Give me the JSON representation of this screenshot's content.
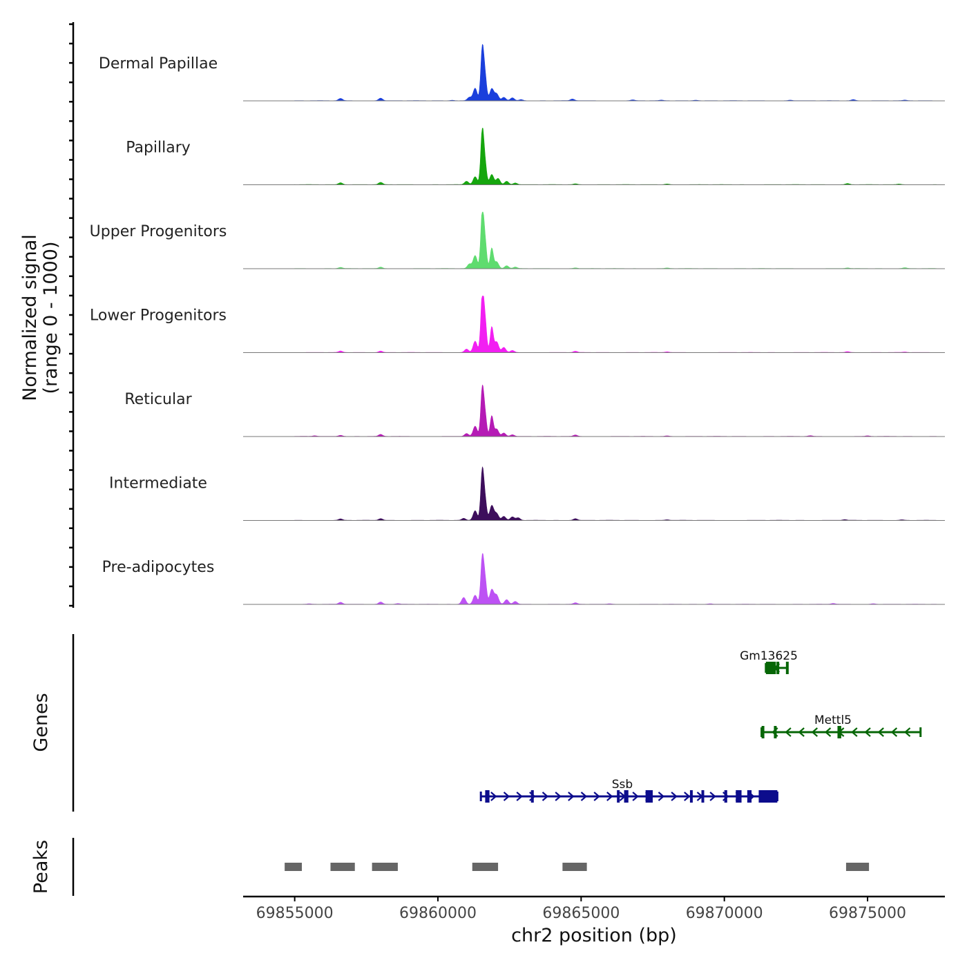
{
  "chart_data": {
    "type": "area",
    "chromosome": "chr2",
    "xlabel": "chr2 position (bp)",
    "xlim": [
      69853200,
      69877700
    ],
    "xticks": [
      69855000,
      69860000,
      69865000,
      69870000,
      69875000
    ],
    "xtick_labels": [
      "69855000",
      "69860000",
      "69865000",
      "69870000",
      "69875000"
    ],
    "coverage_panel": {
      "ylabel_line1": "Normalized signal",
      "ylabel_line2": "(range 0 - 1000)",
      "ylim": [
        0,
        1000
      ]
    },
    "genes_panel": {
      "ylabel": "Genes"
    },
    "peaks_panel": {
      "ylabel": "Peaks"
    },
    "tracks": [
      {
        "name": "Dermal Papillae",
        "color": "#1a3fdc",
        "peaks": [
          [
            69854800,
            8
          ],
          [
            69856600,
            40
          ],
          [
            69858000,
            45
          ],
          [
            69860500,
            8
          ],
          [
            69861100,
            60
          ],
          [
            69861300,
            220
          ],
          [
            69861550,
            920
          ],
          [
            69861650,
            380
          ],
          [
            69861880,
            210
          ],
          [
            69862050,
            120
          ],
          [
            69862300,
            60
          ],
          [
            69862600,
            50
          ],
          [
            69862900,
            20
          ],
          [
            69864700,
            30
          ],
          [
            69866800,
            15
          ],
          [
            69867800,
            10
          ],
          [
            69869000,
            10
          ],
          [
            69872300,
            10
          ],
          [
            69874500,
            20
          ],
          [
            69876300,
            10
          ]
        ]
      },
      {
        "name": "Papillary",
        "color": "#16a60e",
        "peaks": [
          [
            69856600,
            35
          ],
          [
            69858000,
            40
          ],
          [
            69861000,
            60
          ],
          [
            69861300,
            140
          ],
          [
            69861550,
            960
          ],
          [
            69861650,
            320
          ],
          [
            69861880,
            180
          ],
          [
            69862100,
            110
          ],
          [
            69862400,
            60
          ],
          [
            69862700,
            30
          ],
          [
            69864800,
            15
          ],
          [
            69868000,
            12
          ],
          [
            69874300,
            20
          ],
          [
            69876100,
            10
          ]
        ]
      },
      {
        "name": "Upper Progenitors",
        "color": "#5fdc6f",
        "peaks": [
          [
            69856600,
            20
          ],
          [
            69858000,
            25
          ],
          [
            69861100,
            80
          ],
          [
            69861300,
            230
          ],
          [
            69861550,
            1000
          ],
          [
            69861650,
            420
          ],
          [
            69861880,
            360
          ],
          [
            69862050,
            120
          ],
          [
            69862400,
            50
          ],
          [
            69862700,
            25
          ],
          [
            69864800,
            12
          ],
          [
            69868000,
            10
          ],
          [
            69874300,
            12
          ],
          [
            69876300,
            15
          ]
        ]
      },
      {
        "name": "Lower Progenitors",
        "color": "#f21ff2",
        "peaks": [
          [
            69854800,
            8
          ],
          [
            69856600,
            25
          ],
          [
            69858000,
            25
          ],
          [
            69861000,
            60
          ],
          [
            69861300,
            200
          ],
          [
            69861550,
            1000
          ],
          [
            69861650,
            500
          ],
          [
            69861880,
            450
          ],
          [
            69862050,
            190
          ],
          [
            69862300,
            90
          ],
          [
            69862600,
            35
          ],
          [
            69864800,
            22
          ],
          [
            69868000,
            12
          ],
          [
            69874300,
            15
          ],
          [
            69876300,
            8
          ]
        ]
      },
      {
        "name": "Reticular",
        "color": "#b51bb5",
        "peaks": [
          [
            69855700,
            12
          ],
          [
            69856600,
            20
          ],
          [
            69858000,
            35
          ],
          [
            69861000,
            50
          ],
          [
            69861300,
            180
          ],
          [
            69861550,
            840
          ],
          [
            69861650,
            340
          ],
          [
            69861880,
            360
          ],
          [
            69862050,
            130
          ],
          [
            69862300,
            60
          ],
          [
            69862600,
            30
          ],
          [
            69864800,
            25
          ],
          [
            69868000,
            10
          ],
          [
            69873000,
            12
          ],
          [
            69875000,
            10
          ]
        ]
      },
      {
        "name": "Intermediate",
        "color": "#3d0e5c",
        "peaks": [
          [
            69856600,
            25
          ],
          [
            69858000,
            30
          ],
          [
            69860900,
            35
          ],
          [
            69861300,
            170
          ],
          [
            69861550,
            880
          ],
          [
            69861650,
            320
          ],
          [
            69861880,
            260
          ],
          [
            69862050,
            120
          ],
          [
            69862300,
            70
          ],
          [
            69862600,
            60
          ],
          [
            69862800,
            45
          ],
          [
            69864800,
            30
          ],
          [
            69868000,
            10
          ],
          [
            69874200,
            12
          ],
          [
            69876200,
            10
          ]
        ]
      },
      {
        "name": "Pre-adipocytes",
        "color": "#bd52f4",
        "peaks": [
          [
            69854800,
            10
          ],
          [
            69855500,
            8
          ],
          [
            69856600,
            35
          ],
          [
            69858000,
            40
          ],
          [
            69858600,
            12
          ],
          [
            69860900,
            120
          ],
          [
            69861300,
            160
          ],
          [
            69861550,
            820
          ],
          [
            69861650,
            380
          ],
          [
            69861880,
            260
          ],
          [
            69862050,
            160
          ],
          [
            69862400,
            80
          ],
          [
            69862700,
            50
          ],
          [
            69864800,
            25
          ],
          [
            69866000,
            10
          ],
          [
            69869500,
            10
          ],
          [
            69873800,
            15
          ],
          [
            69875200,
            10
          ]
        ]
      }
    ],
    "genes": [
      {
        "name": "Gm13625",
        "strand": "-",
        "color": "#066606",
        "start": 69871450,
        "end": 69872200,
        "exons": [
          [
            69871450,
            69871800
          ],
          [
            69871820,
            69871870
          ],
          [
            69872150,
            69872200
          ]
        ]
      },
      {
        "name": "Mettl5",
        "strand": "-",
        "color": "#066606",
        "start": 69871300,
        "end": 69876850,
        "exons": [
          [
            69871300,
            69871370
          ],
          [
            69871730,
            69871780
          ],
          [
            69873950,
            69874080
          ]
        ]
      },
      {
        "name": "Ssb",
        "strand": "+",
        "color": "#0c0c8c",
        "start": 69861500,
        "end": 69871850,
        "exons": [
          [
            69861650,
            69861800
          ],
          [
            69863250,
            69863300
          ],
          [
            69866250,
            69866300
          ],
          [
            69866500,
            69866650
          ],
          [
            69867250,
            69867500
          ],
          [
            69868800,
            69868850
          ],
          [
            69869200,
            69869250
          ],
          [
            69870000,
            69870100
          ],
          [
            69870400,
            69870600
          ],
          [
            69870800,
            69870950
          ],
          [
            69871200,
            69871850
          ]
        ]
      }
    ],
    "peak_regions": [
      [
        69854650,
        69855250
      ],
      [
        69856250,
        69857100
      ],
      [
        69857700,
        69858600
      ],
      [
        69861200,
        69862100
      ],
      [
        69864350,
        69865200
      ],
      [
        69874250,
        69875050
      ]
    ]
  }
}
